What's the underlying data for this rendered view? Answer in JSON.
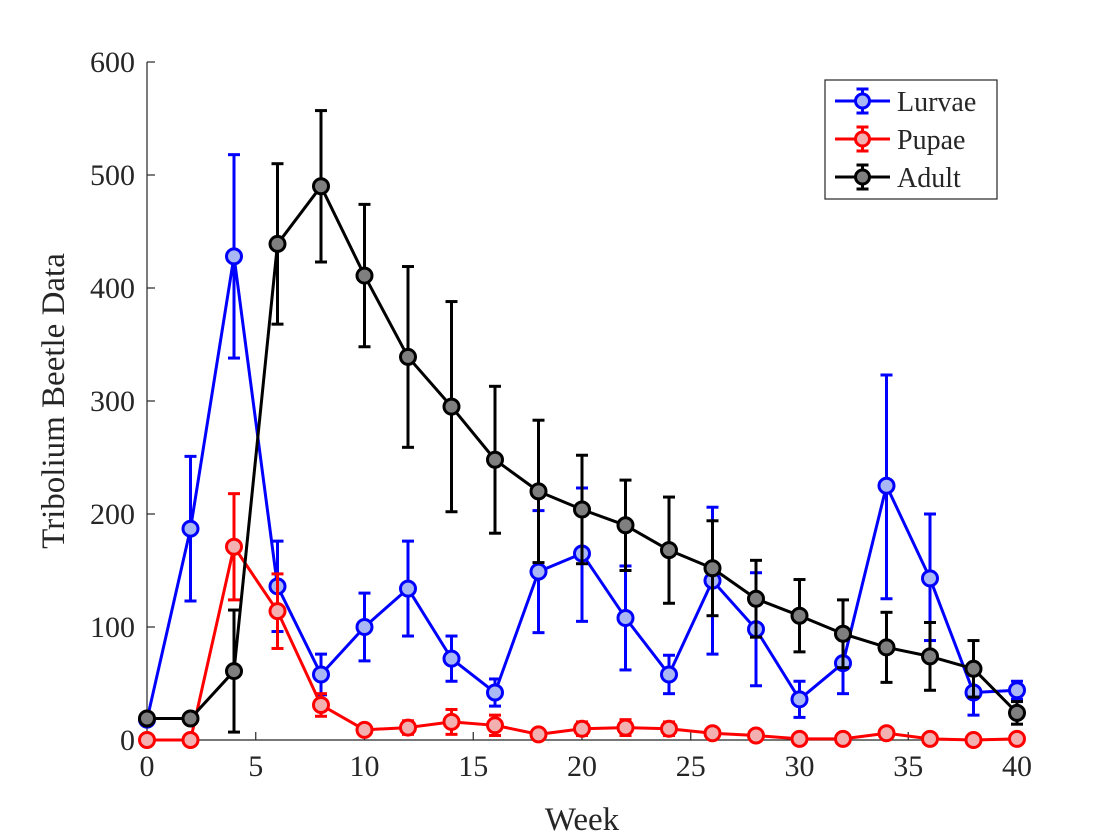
{
  "chart_data": {
    "type": "line",
    "title": "",
    "xlabel": "Week",
    "ylabel": "Tribolium Beetle Data",
    "xlim": [
      0,
      40
    ],
    "ylim": [
      0,
      600
    ],
    "xticks": [
      0,
      5,
      10,
      15,
      20,
      25,
      30,
      35,
      40
    ],
    "yticks": [
      0,
      100,
      200,
      300,
      400,
      500,
      600
    ],
    "grid": false,
    "legend_position": "top-right",
    "x": [
      0,
      2,
      4,
      6,
      8,
      10,
      12,
      14,
      16,
      18,
      20,
      22,
      24,
      26,
      28,
      30,
      32,
      34,
      36,
      38,
      40
    ],
    "series": [
      {
        "name": "Lurvae",
        "color": "#0000ff",
        "marker_fill": "#a9b8f5",
        "values": [
          18,
          187,
          428,
          136,
          58,
          100,
          134,
          72,
          42,
          149,
          165,
          108,
          58,
          141,
          98,
          36,
          68,
          225,
          143,
          42,
          44
        ],
        "err_low": [
          0,
          64,
          90,
          40,
          18,
          30,
          42,
          20,
          12,
          54,
          60,
          46,
          17,
          65,
          50,
          16,
          27,
          100,
          55,
          20,
          8
        ],
        "err_high": [
          0,
          64,
          90,
          40,
          18,
          30,
          42,
          20,
          12,
          54,
          58,
          46,
          17,
          65,
          50,
          16,
          27,
          98,
          57,
          20,
          8
        ]
      },
      {
        "name": "Pupae",
        "color": "#ff0000",
        "marker_fill": "#f2b0b0",
        "values": [
          0,
          0,
          171,
          114,
          31,
          9,
          11,
          16,
          13,
          5,
          10,
          11,
          10,
          6,
          4,
          1,
          1,
          6,
          1,
          0,
          1
        ],
        "err_low": [
          0,
          0,
          47,
          33,
          10,
          4,
          6,
          11,
          9,
          2,
          6,
          7,
          6,
          3,
          2,
          1,
          1,
          3,
          1,
          0,
          1
        ],
        "err_high": [
          0,
          0,
          47,
          33,
          10,
          4,
          6,
          11,
          9,
          2,
          6,
          7,
          6,
          3,
          2,
          1,
          1,
          3,
          1,
          0,
          1
        ]
      },
      {
        "name": "Adult",
        "color": "#000000",
        "marker_fill": "#7f7f7f",
        "values": [
          19,
          19,
          61,
          439,
          490,
          411,
          339,
          295,
          248,
          220,
          204,
          190,
          168,
          152,
          125,
          110,
          94,
          82,
          74,
          63,
          24
        ],
        "err_low": [
          0,
          0,
          54,
          71,
          67,
          63,
          80,
          93,
          65,
          63,
          48,
          40,
          47,
          42,
          34,
          32,
          30,
          31,
          30,
          25,
          10
        ],
        "err_high": [
          0,
          0,
          54,
          71,
          67,
          63,
          80,
          93,
          65,
          63,
          48,
          40,
          47,
          42,
          34,
          32,
          30,
          31,
          30,
          25,
          10
        ]
      }
    ]
  }
}
